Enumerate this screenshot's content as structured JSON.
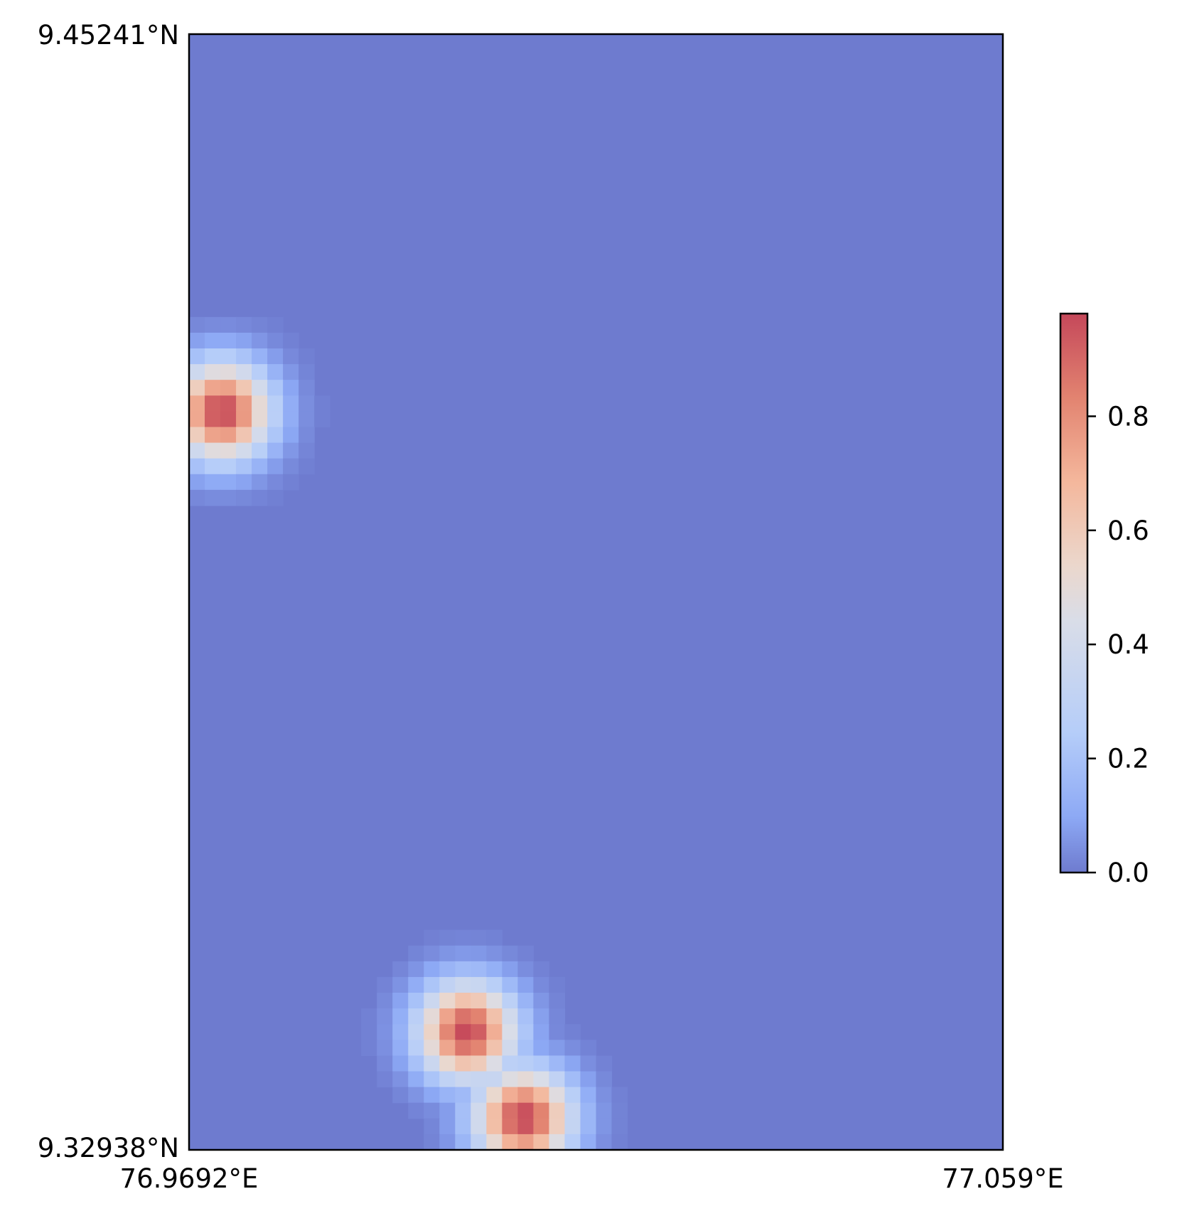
{
  "chart_data": {
    "type": "heatmap",
    "title": "",
    "xlabel": "",
    "ylabel": "",
    "colormap": "coolwarm",
    "colors": {
      "low": "#6e7bcf",
      "mid": "#dddcdb",
      "high": "#c5485a"
    },
    "x_range": [
      76.9692,
      77.059
    ],
    "y_range": [
      9.32938,
      9.45241
    ],
    "x_tick_labels": [
      "76.9692°E",
      "77.059°E"
    ],
    "y_tick_labels": [
      "9.45241°N",
      "9.32938°N"
    ],
    "value_range": [
      0.0,
      0.98
    ],
    "colorbar": {
      "ticks": [
        0.0,
        0.2,
        0.4,
        0.6,
        0.8
      ],
      "tick_labels": [
        "0.0",
        "0.2",
        "0.4",
        "0.6",
        "0.8"
      ]
    },
    "hotspots": [
      {
        "lon": 76.9728,
        "lat": 9.4108,
        "peak": 0.98,
        "radius_deg": 0.0055
      },
      {
        "lon": 76.9999,
        "lat": 9.3424,
        "peak": 0.98,
        "radius_deg": 0.0055
      },
      {
        "lon": 77.0061,
        "lat": 9.3329,
        "peak": 0.98,
        "radius_deg": 0.0055
      }
    ],
    "grid": false
  }
}
